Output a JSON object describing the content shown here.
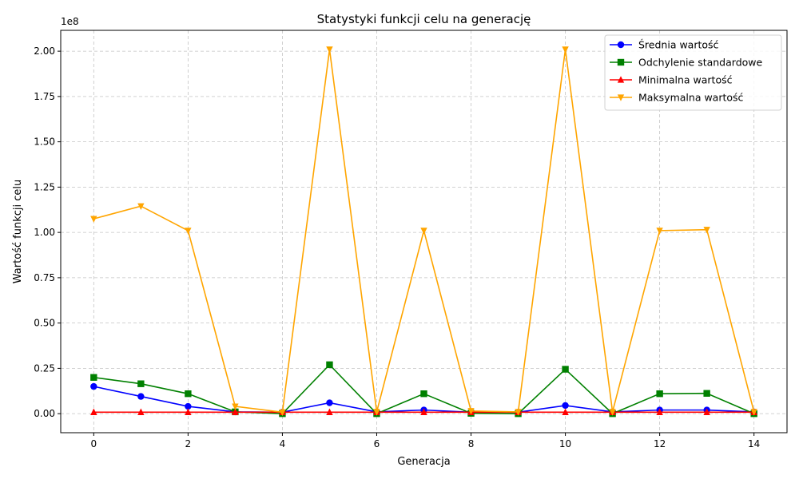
{
  "chart_data": {
    "type": "line",
    "title": "Statystyki funkcji celu na generację",
    "xlabel": "Generacja",
    "ylabel": "Wartość funkcji celu",
    "y_offset_label": "1e8",
    "y_scale": 100000000,
    "xlim": [
      -0.7,
      14.7
    ],
    "ylim": [
      -0.105,
      2.115
    ],
    "x_ticks": [
      0,
      2,
      4,
      6,
      8,
      10,
      12,
      14
    ],
    "x_tick_labels": [
      "0",
      "2",
      "4",
      "6",
      "8",
      "10",
      "12",
      "14"
    ],
    "y_ticks": [
      0,
      0.25,
      0.5,
      0.75,
      1.0,
      1.25,
      1.5,
      1.75,
      2.0
    ],
    "y_tick_labels": [
      "0.00",
      "0.25",
      "0.50",
      "0.75",
      "1.00",
      "1.25",
      "1.50",
      "1.75",
      "2.00"
    ],
    "grid": true,
    "legend_position": "top-right",
    "x": [
      0,
      1,
      2,
      3,
      4,
      5,
      6,
      7,
      8,
      9,
      10,
      11,
      12,
      13,
      14
    ],
    "series": [
      {
        "name": "Średnia wartość",
        "color": "#0000ff",
        "marker": "circle",
        "values": [
          0.15,
          0.095,
          0.04,
          0.01,
          0.008,
          0.06,
          0.01,
          0.02,
          0.008,
          0.008,
          0.045,
          0.01,
          0.02,
          0.02,
          0.01
        ]
      },
      {
        "name": "Odchylenie standardowe",
        "color": "#008000",
        "marker": "square",
        "values": [
          0.2,
          0.165,
          0.11,
          0.01,
          0.0,
          0.27,
          0.0,
          0.11,
          0.002,
          0.0,
          0.245,
          0.0,
          0.11,
          0.112,
          0.0
        ]
      },
      {
        "name": "Minimalna wartość",
        "color": "#ff0000",
        "marker": "triangle-up",
        "values": [
          0.008,
          0.008,
          0.008,
          0.008,
          0.008,
          0.008,
          0.008,
          0.008,
          0.008,
          0.008,
          0.008,
          0.008,
          0.008,
          0.008,
          0.008
        ]
      },
      {
        "name": "Maksymalna wartość",
        "color": "#ffa500",
        "marker": "triangle-down",
        "values": [
          1.075,
          1.145,
          1.01,
          0.04,
          0.008,
          2.01,
          0.01,
          1.01,
          0.015,
          0.01,
          2.01,
          0.01,
          1.01,
          1.015,
          0.01
        ]
      }
    ]
  }
}
